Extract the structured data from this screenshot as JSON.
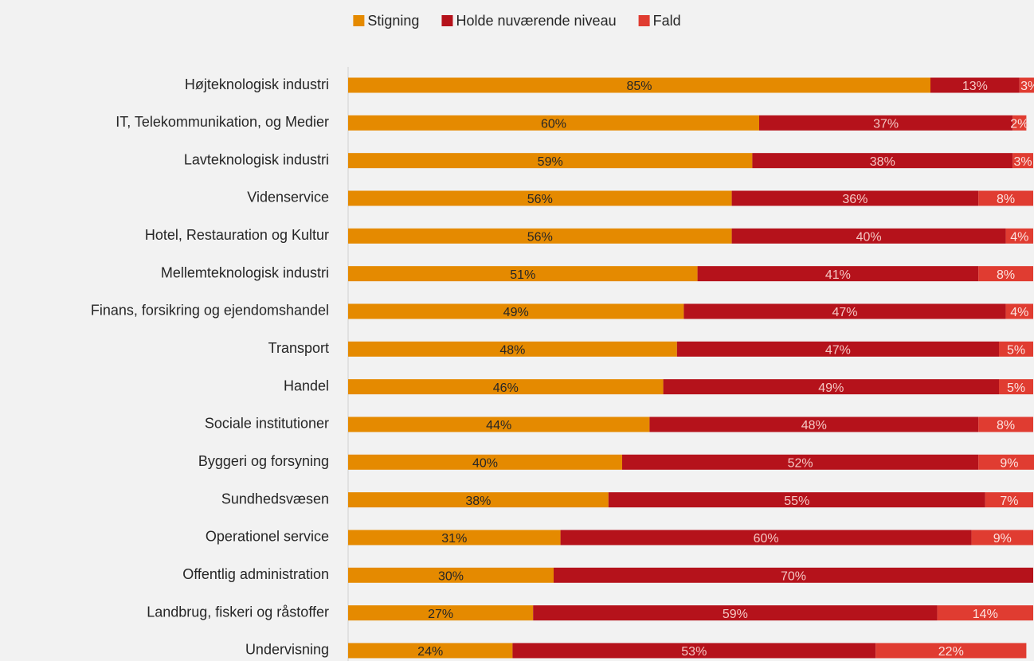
{
  "chart_data": {
    "type": "stacked_bar_horizontal",
    "categories": [
      "Højteknologisk industri",
      "IT, Telekommunikation, og Medier",
      "Lavteknologisk industri",
      "Videnservice",
      "Hotel, Restauration og Kultur",
      "Mellemteknologisk industri",
      "Finans, forsikring og ejendomshandel",
      "Transport",
      "Handel",
      "Sociale institutioner",
      "Byggeri og forsyning",
      "Sundhedsvæsen",
      "Operationel service",
      "Offentlig administration",
      "Landbrug, fiskeri og råstoffer",
      "Undervisning"
    ],
    "series": [
      {
        "name": "Stigning",
        "color": "#e58a00",
        "label_color": "#262626",
        "values": [
          85,
          60,
          59,
          56,
          56,
          51,
          49,
          48,
          46,
          44,
          40,
          38,
          31,
          30,
          27,
          24
        ],
        "value_labels": [
          "85%",
          "60%",
          "59%",
          "56%",
          "56%",
          "51%",
          "49%",
          "48%",
          "46%",
          "44%",
          "40%",
          "38%",
          "31%",
          "30%",
          "27%",
          "24%"
        ]
      },
      {
        "name": "Holde nuværende niveau",
        "color": "#b5121b",
        "label_color": "#f4c7c3",
        "values": [
          13,
          37,
          38,
          36,
          40,
          41,
          47,
          47,
          49,
          48,
          52,
          55,
          60,
          70,
          59,
          53
        ],
        "value_labels": [
          "13%",
          "37%",
          "38%",
          "36%",
          "40%",
          "41%",
          "47%",
          "47%",
          "49%",
          "48%",
          "52%",
          "55%",
          "60%",
          "70%",
          "59%",
          "53%"
        ]
      },
      {
        "name": "Fald",
        "color": "#e03c31",
        "label_color": "#fbe3e0",
        "values": [
          3,
          2,
          3,
          8,
          4,
          8,
          4,
          5,
          5,
          8,
          9,
          7,
          9,
          null,
          14,
          22
        ],
        "value_labels": [
          "3%",
          "2%",
          "3%",
          "8%",
          "4%",
          "8%",
          "4%",
          "5%",
          "5%",
          "8%",
          "9%",
          "7%",
          "9%",
          null,
          "14%",
          "22%"
        ]
      }
    ],
    "xlim": [
      0,
      100
    ],
    "legend": "top"
  }
}
